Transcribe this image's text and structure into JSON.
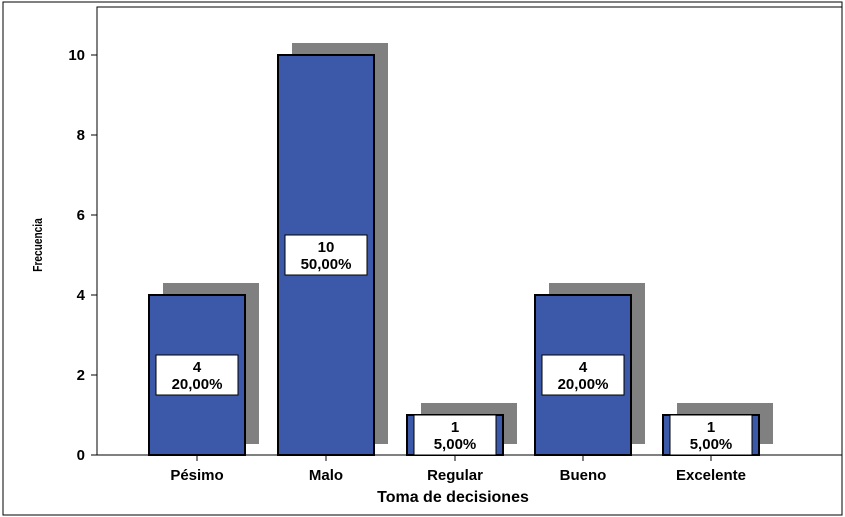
{
  "chart_data": {
    "type": "bar",
    "categories": [
      "Pésimo",
      "Malo",
      "Regular",
      "Bueno",
      "Excelente"
    ],
    "values": [
      4,
      10,
      1,
      4,
      1
    ],
    "percent_labels": [
      "20,00%",
      "50,00%",
      "5,00%",
      "20,00%",
      "5,00%"
    ],
    "xlabel": "Toma de decisiones",
    "ylabel": "Frecuencia",
    "ylim": [
      0,
      10.5
    ],
    "yticks": [
      "0",
      "2",
      "4",
      "6",
      "8",
      "10"
    ],
    "grid": false,
    "legend": "none",
    "colors": {
      "bar": "#3c58a8",
      "shadow": "#808080",
      "bar_border": "#000000",
      "label_box": "#ffffff"
    }
  }
}
